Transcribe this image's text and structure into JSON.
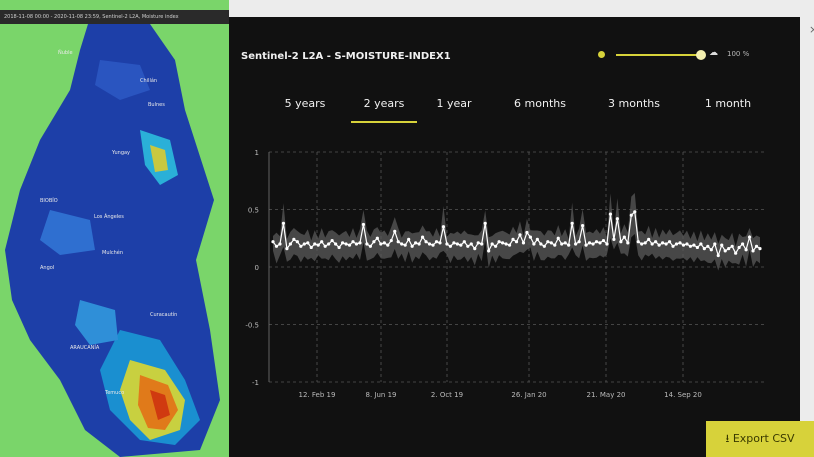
{
  "map": {
    "title": "2018-11-08 00:00 - 2020-11-08 23:59, Sentinel-2 L2A, Moisture index",
    "labels": [
      "Ñuble",
      "Chillán",
      "Bulnes",
      "Yungay",
      "BIOBÍO",
      "Los Ángeles",
      "Mulchén",
      "Angol",
      "Curacautín",
      "ARAUCANÍA",
      "Temuco"
    ]
  },
  "panel": {
    "title": "Sentinel-2 L2A - S-MOISTURE-INDEX1",
    "opacity_value": "100 %",
    "tabs": [
      "5 years",
      "2 years",
      "1 year",
      "6 months",
      "3 months",
      "1 month"
    ],
    "active_tab": "2 years",
    "export_label": "Export CSV"
  },
  "icons": {
    "opacity": "sun-icon",
    "cloud": "cloud-icon",
    "close": "close-icon",
    "export": "download-icon"
  },
  "colors": {
    "accent": "#d7d23a",
    "panel_bg": "#111111",
    "line": "#ffffff",
    "band": "#5a5a5a"
  },
  "chart_data": {
    "type": "line",
    "yticks": [
      1,
      0.5,
      0,
      -0.5,
      -1
    ],
    "ylim": [
      -1,
      1
    ],
    "xticks": [
      "12. Feb 19",
      "8. Jun 19",
      "2. Oct 19",
      "26. Jan 20",
      "21. May 20",
      "14. Sep 20"
    ],
    "grid": true,
    "series": [
      {
        "values": [
          0.22,
          0.18,
          0.2,
          0.38,
          0.16,
          0.2,
          0.24,
          0.22,
          0.18,
          0.2,
          0.21,
          0.17,
          0.2,
          0.19,
          0.22,
          0.18,
          0.2,
          0.23,
          0.2,
          0.17,
          0.21,
          0.2,
          0.19,
          0.22,
          0.2,
          0.21,
          0.37,
          0.2,
          0.18,
          0.22,
          0.25,
          0.2,
          0.21,
          0.19,
          0.23,
          0.31,
          0.22,
          0.2,
          0.19,
          0.24,
          0.18,
          0.21,
          0.2,
          0.26,
          0.22,
          0.2,
          0.19,
          0.22,
          0.21,
          0.35,
          0.2,
          0.18,
          0.21,
          0.2,
          0.19,
          0.22,
          0.18,
          0.2,
          0.16,
          0.21,
          0.2,
          0.38,
          0.14,
          0.2,
          0.18,
          0.22,
          0.21,
          0.2,
          0.19,
          0.24,
          0.22,
          0.28,
          0.21,
          0.3,
          0.26,
          0.2,
          0.24,
          0.2,
          0.18,
          0.22,
          0.21,
          0.19,
          0.25,
          0.2,
          0.21,
          0.19,
          0.38,
          0.2,
          0.22,
          0.36,
          0.19,
          0.21,
          0.2,
          0.22,
          0.21,
          0.23,
          0.2,
          0.46,
          0.24,
          0.42,
          0.22,
          0.26,
          0.21,
          0.45,
          0.48,
          0.22,
          0.2,
          0.21,
          0.24,
          0.2,
          0.22,
          0.19,
          0.21,
          0.2,
          0.22,
          0.18,
          0.2,
          0.21,
          0.19,
          0.2,
          0.18,
          0.19,
          0.17,
          0.2,
          0.16,
          0.18,
          0.15,
          0.2,
          0.1,
          0.19,
          0.14,
          0.16,
          0.18,
          0.12,
          0.17,
          0.2,
          0.15,
          0.26,
          0.14,
          0.18,
          0.16
        ]
      }
    ]
  }
}
